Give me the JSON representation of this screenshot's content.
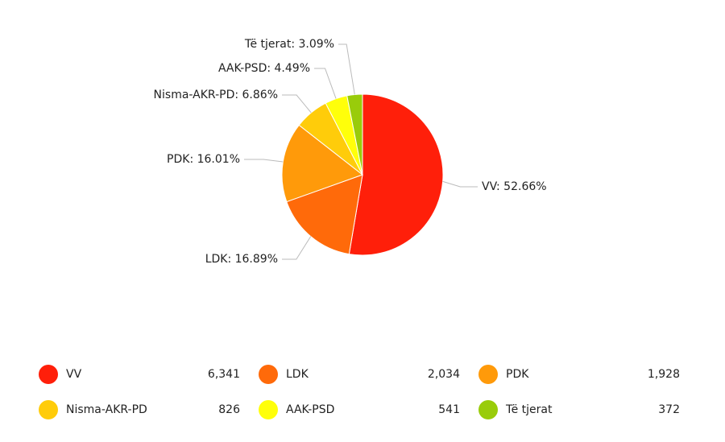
{
  "chart_data": {
    "type": "pie",
    "categories": [
      "VV",
      "LDK",
      "PDK",
      "Nisma-AKR-PD",
      "AAK-PSD",
      "Të tjerat"
    ],
    "values": [
      52.66,
      16.89,
      16.01,
      6.86,
      4.49,
      3.09
    ],
    "value_labels": [
      "VV: 52.66%",
      "LDK: 16.89%",
      "PDK: 16.01%",
      "Nisma-AKR-PD: 6.86%",
      "AAK-PSD: 4.49%",
      "Të tjerat: 3.09%"
    ],
    "colors": [
      "#ff1f0a",
      "#ff6a0a",
      "#ff9a0a",
      "#ffcc0a",
      "#ffff0a",
      "#99cc0a"
    ],
    "counts": [
      6341,
      2034,
      1928,
      826,
      541,
      372
    ],
    "count_labels": [
      "6,341",
      "2,034",
      "1,928",
      "826",
      "541",
      "372"
    ]
  }
}
